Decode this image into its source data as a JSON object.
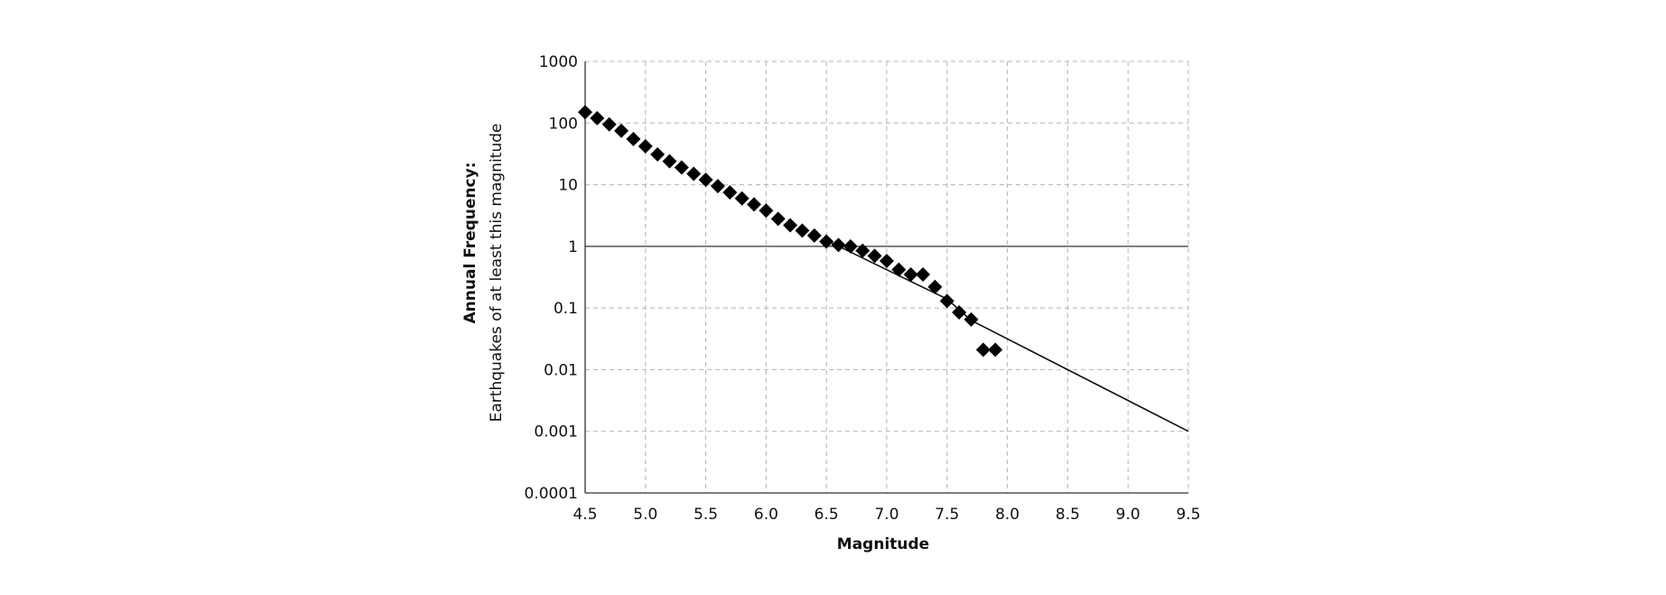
{
  "chart_data": {
    "type": "scatter",
    "xlabel": "Magnitude",
    "ylabel": {
      "line1": "Annual Frequency:",
      "line2": "Earthquakes of at least this magnitude"
    },
    "x_ticks": [
      "4.5",
      "5.0",
      "5.5",
      "6.0",
      "6.5",
      "7.0",
      "7.5",
      "8.0",
      "8.5",
      "9.0",
      "9.5"
    ],
    "y_ticks": [
      "1000",
      "100",
      "10",
      "1",
      "0.1",
      "0.01",
      "0.001",
      "0.0001"
    ],
    "xlim": [
      4.5,
      9.5
    ],
    "ylim": [
      0.0001,
      1000
    ],
    "y_scale": "log",
    "grid": "dashed",
    "reference_line_y": 1,
    "series": [
      {
        "type": "scatter",
        "marker": "diamond",
        "color": "#000000",
        "x": [
          4.5,
          4.6,
          4.7,
          4.8,
          4.9,
          5.0,
          5.1,
          5.2,
          5.3,
          5.4,
          5.5,
          5.6,
          5.7,
          5.8,
          5.9,
          6.0,
          6.1,
          6.2,
          6.3,
          6.4,
          6.5,
          6.6,
          6.7,
          6.8,
          6.9,
          7.0,
          7.1,
          7.2,
          7.3,
          7.4,
          7.5,
          7.6,
          7.7,
          7.8,
          7.9
        ],
        "y": [
          150,
          120,
          95,
          75,
          55,
          42,
          31,
          24,
          19,
          15,
          12,
          9.5,
          7.5,
          6.0,
          4.8,
          3.8,
          2.8,
          2.2,
          1.8,
          1.5,
          1.2,
          1.05,
          1.0,
          0.85,
          0.7,
          0.58,
          0.42,
          0.35,
          0.35,
          0.22,
          0.13,
          0.085,
          0.065,
          0.021,
          0.021
        ]
      },
      {
        "type": "line",
        "color": "#111111",
        "x": [
          6.5,
          7.5,
          7.7,
          9.5
        ],
        "y": [
          1.25,
          0.14,
          0.063,
          0.001
        ]
      }
    ]
  }
}
